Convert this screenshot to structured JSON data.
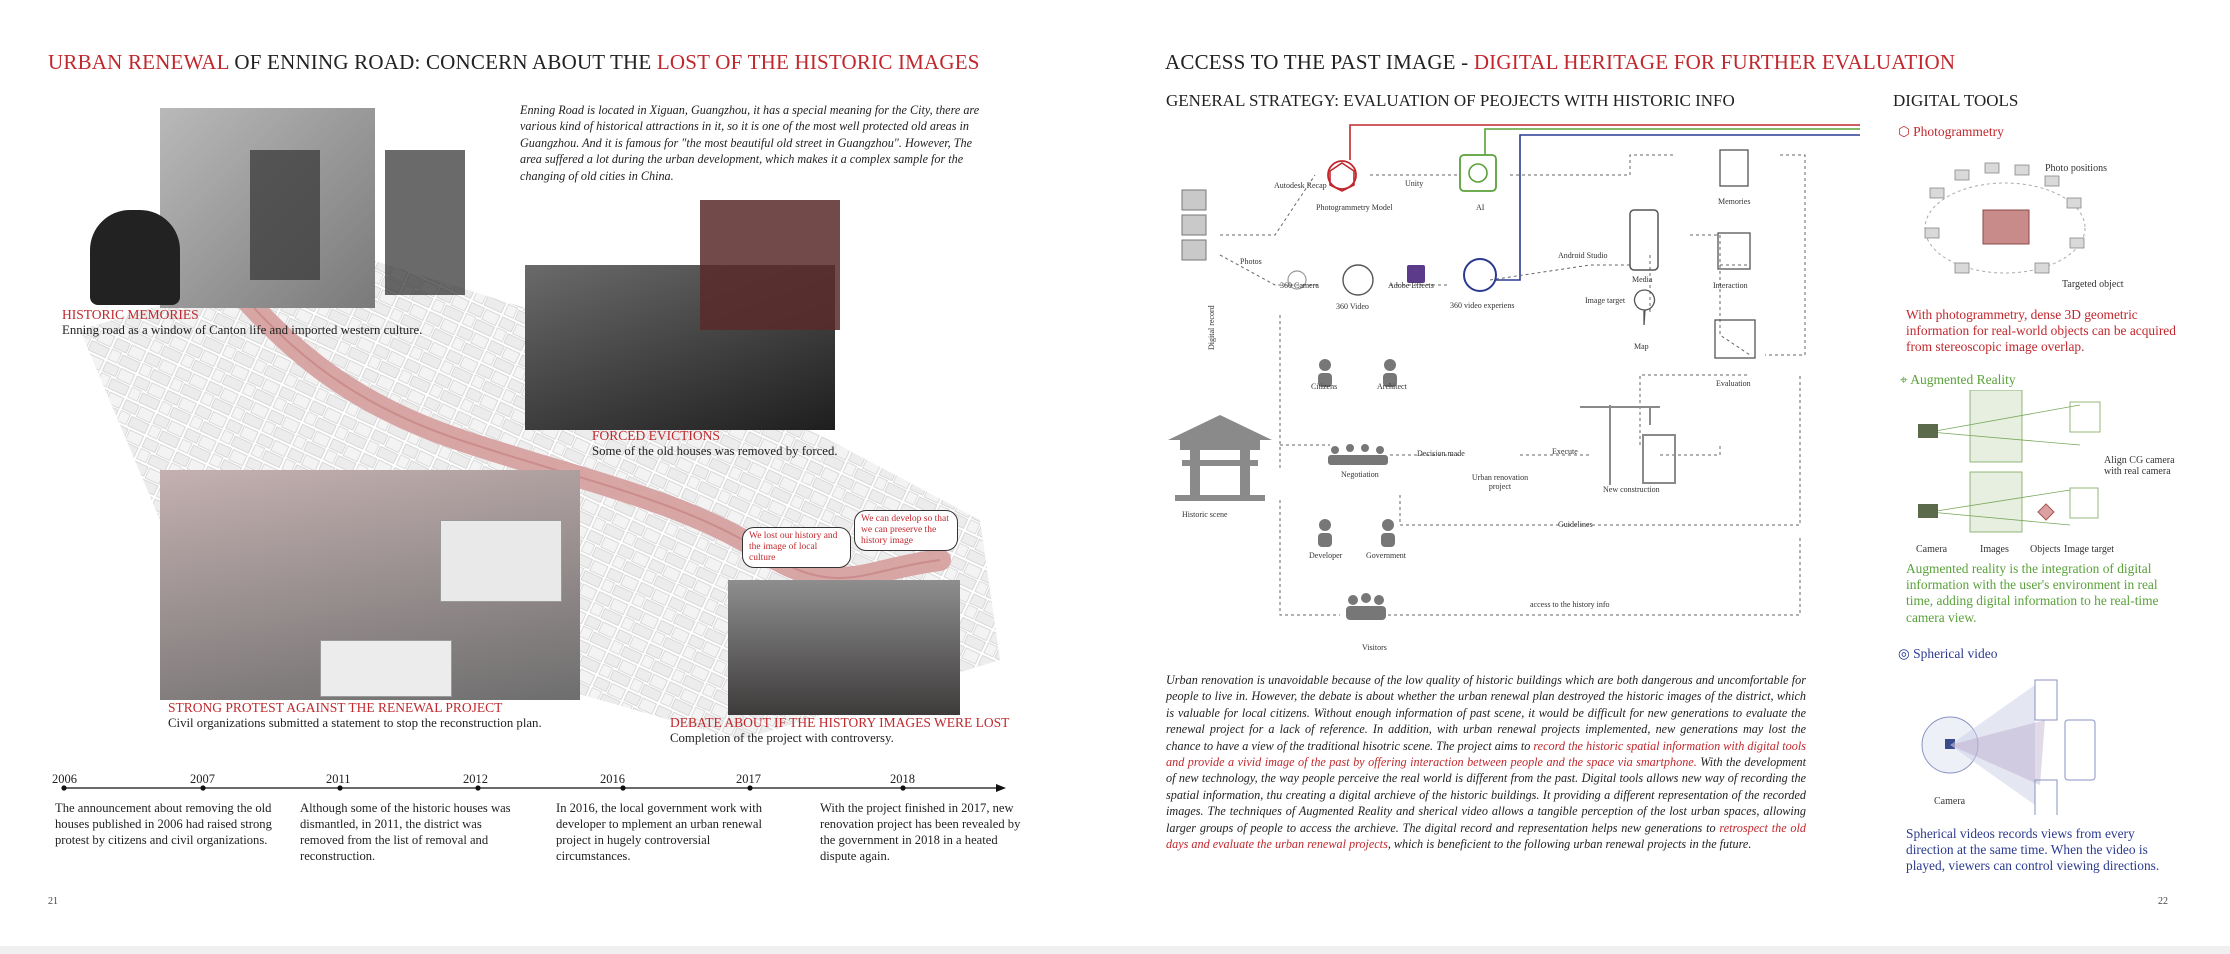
{
  "left": {
    "headline": {
      "part1": "URBAN RENEWAL",
      "part2": " OF ENNING ROAD: CONCERN ABOUT THE ",
      "part3": "LOST OF THE HISTORIC IMAGES"
    },
    "intro": "Enning Road is located in Xiguan, Guangzhou, it has a special meaning for the City, there are various kind of historical attractions in it, so it is one of the most well protected old areas in Guangzhou. And it is famous for \"the most beautiful old street in Guangzhou\". However, The area suffered a lot during the urban development, which makes it a complex sample for the changing of old cities in China.",
    "captions": [
      {
        "title": "HISTORIC MEMORIES",
        "text": "Enning road as a window of Canton life and imported western culture."
      },
      {
        "title": "FORCED EVICTIONS",
        "text": "Some of the old houses was removed by forced."
      },
      {
        "title": "STRONG PROTEST AGAINST THE RENEWAL PROJECT",
        "text": "Civil organizations submitted a statement to stop the reconstruction plan."
      },
      {
        "title": "DEBATE ABOUT IF THE HISTORY IMAGES WERE LOST",
        "text": "Completion of the project with controversy."
      }
    ],
    "bubbles": [
      "We lost our history and the image of local culture",
      "We can develop so that we can preserve the history image"
    ],
    "timeline": {
      "years": [
        "2006",
        "2007",
        "2011",
        "2012",
        "2016",
        "2017",
        "2018"
      ],
      "entries": [
        "The announcement about removing the old houses published in 2006 had raised strong protest by citizens and civil organizations.",
        "Although some of the historic houses was dismantled, in 2011, the district was removed from the list of removal and reconstruction.",
        "In 2016, the local government work with developer to mplement an urban renewal project in hugely controversial circumstances.",
        "With the project finished in 2017, new renovation project has been revealed by the government in 2018 in a heated dispute again."
      ]
    },
    "page_number": "21"
  },
  "right": {
    "headline": {
      "part1": "ACCESS TO THE PAST IMAGE - ",
      "part2": "DIGITAL HERITAGE FOR FURTHER EVALUATION"
    },
    "strategy_title": "GENERAL STRATEGY:  EVALUATION OF PEOJECTS WITH HISTORIC INFO",
    "tools_title": "DIGITAL TOOLS",
    "diagram": {
      "photos": "Photos",
      "recap": "Autodesk Recap",
      "unity": "Unity",
      "photogrammetry_model": "Photogrammetry Model",
      "ai": "AI",
      "memories": "Memories",
      "android": "Android Studio",
      "media": "Media",
      "interaction": "Interaction",
      "image_target": "Image target",
      "map": "Map",
      "camera360": "360 Camera",
      "video360": "360 Video",
      "after_effects": "Adobe Effects",
      "video_exp": "360 video experiens",
      "digital_record": "Digital record",
      "evaluation": "Evaluation",
      "citizens": "Citizens",
      "architect": "Architect",
      "negotiation": "Negotiation",
      "decision": "Decision made",
      "execute": "Execute",
      "urp": "Urban renovation project",
      "new_construction": "New construction",
      "historic_scene": "Historic scene",
      "guidelines": "Guidelines",
      "developer": "Developer",
      "government": "Government",
      "access": "access to the history info",
      "visitors": "Visitors"
    },
    "body": {
      "part1": "Urban renovation is unavoidable because of the low quality of historic buildings which are both dangerous and uncomfortable for people to live in. However, the debate is about whether the urban renewal plan destroyed the historic images of the district, which is valuable for local citizens. Without enough information of past scene, it would be difficult for new generations to evaluate the renewal project for a lack of reference. In addition, with urban renewal projects implemented, new generations may lost the chance to have a view of the traditional hisotric scene. The project aims to ",
      "highlight1": "record the historic spatial information with digital tools and provide a vivid image of the past by offering interaction between people and the space via smartphone.",
      "part2": " With the development of new technology, the way people perceive the real world is different from the past. Digital tools allows new way of recording the spatial information, thu creating a digital archieve of the historic buildings. It providing a different representation of the recorded images. The techniques of Augmented Reality and sherical video allows a tangible perception of the lost urban spaces, allowing larger groups of people to access the archieve. The digital record and representation helps new generations to ",
      "highlight2": "retrospect the old days and evaluate the urban renewal projects",
      "part3": ", which is beneficient to the following urban renewal projects in the future."
    },
    "tools": {
      "photogrammetry": {
        "title": "Photogrammetry",
        "photo_positions": "Photo positions",
        "targeted_object": "Targeted object",
        "text": "With photogrammetry, dense 3D geometric information for real-world objects can be acquired from stereoscopic image overlap."
      },
      "ar": {
        "title": "Augmented Reality",
        "align": "Align CG camera with real camera",
        "camera": "Camera",
        "images": "Images",
        "objects": "Objects",
        "image_target": "Image target",
        "text": "Augmented reality is the integration of digital information with the user's environment in real time, adding digital information to he real-time camera view."
      },
      "spherical": {
        "title": "Spherical video",
        "camera": "Camera",
        "text": "Spherical videos records views from every direction at the same time. When the video is played, viewers can control viewing directions."
      }
    },
    "page_number": "22"
  },
  "colors": {
    "red": "#c0282d",
    "green": "#5aa13a",
    "blue": "#2b3a8f"
  }
}
